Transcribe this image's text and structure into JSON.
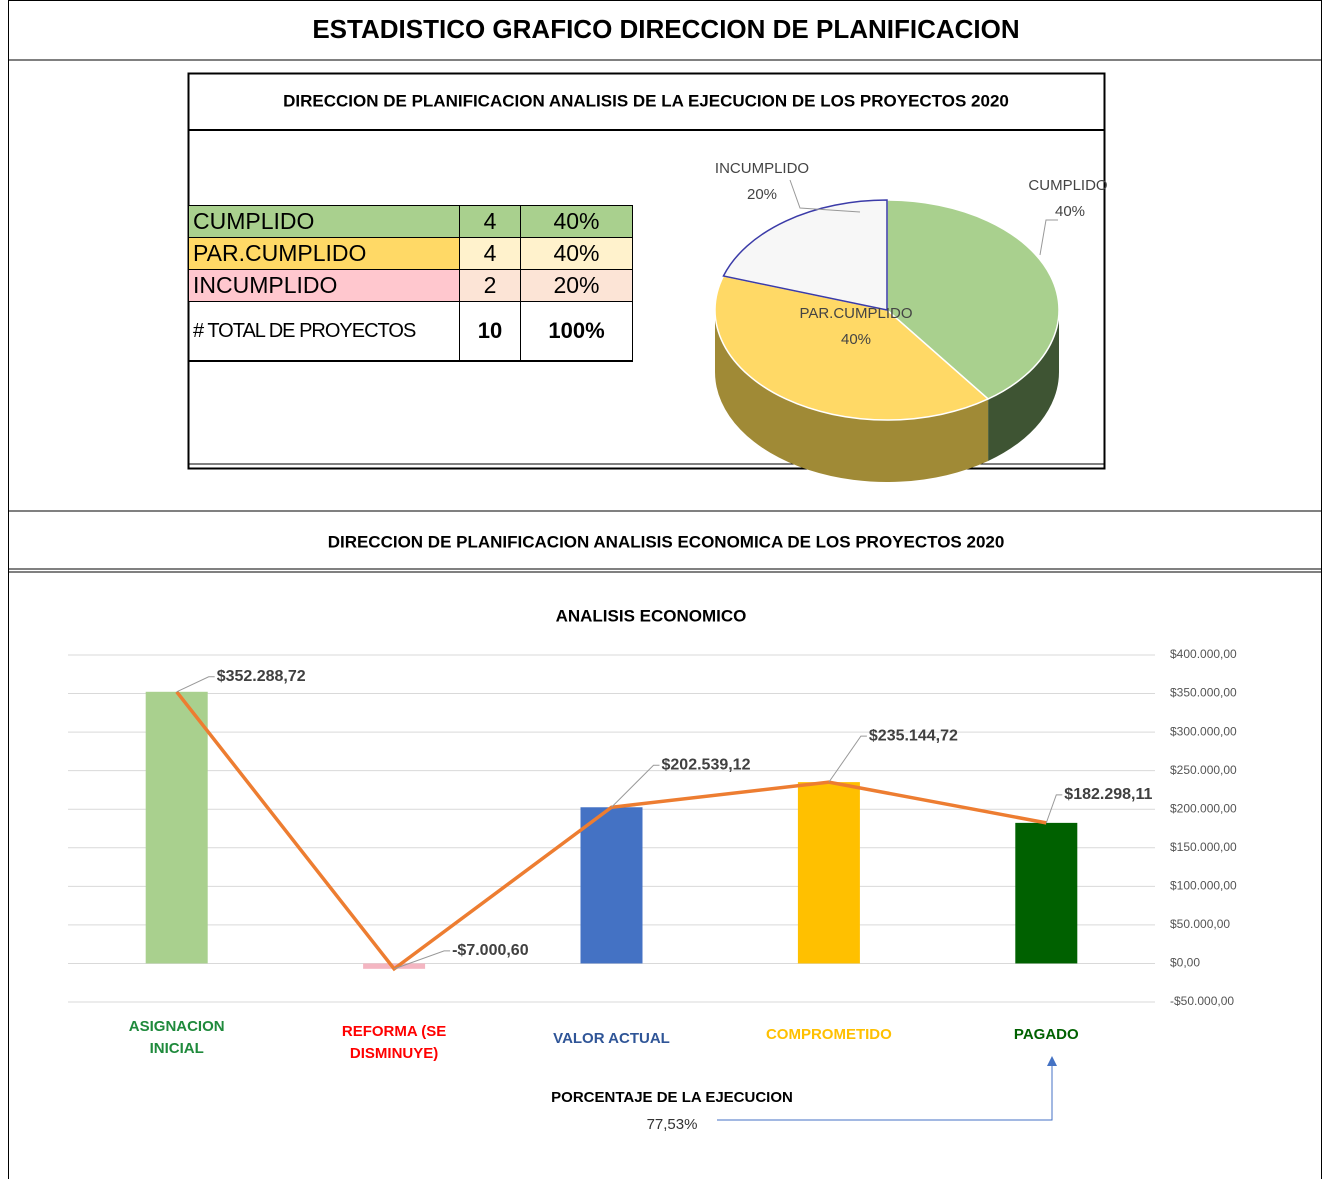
{
  "title": "ESTADISTICO GRAFICO DIRECCION DE PLANIFICACION",
  "section_titles": [
    "DIRECCION DE PLANIFICACION  ANALISIS DE LA EJECUCION  DE LOS PROYECTOS 2020",
    "DIRECCION DE PLANIFICACION ANALISIS ECONOMICA  DE LOS PROYECTOS 2020"
  ],
  "table": {
    "rows": [
      [
        "CUMPLIDO",
        4,
        "40%"
      ],
      [
        "PAR.CUMPLIDO",
        4,
        "40%"
      ],
      [
        "INCUMPLIDO",
        2,
        "20%"
      ],
      [
        "# TOTAL DE PROYECTOS",
        10,
        "100%"
      ]
    ]
  },
  "chart_data": [
    {
      "type": "pie",
      "categories": [
        "CUMPLIDO",
        "PAR.CUMPLIDO",
        "INCUMPLIDO"
      ],
      "values": [
        40,
        40,
        20
      ],
      "value_labels": [
        "40%",
        "40%",
        "20%"
      ],
      "colors": [
        "#a9d08e",
        "#ffd966",
        "#f7f7f7"
      ],
      "side_colors": [
        "#3e5433",
        "#a08a36",
        "#999999"
      ]
    },
    {
      "type": "bar",
      "title": "ANALISIS  ECONOMICO",
      "categories": [
        "ASIGNACION INICIAL",
        "REFORMA (SE DISMINUYE)",
        "VALOR ACTUAL",
        "COMPROMETIDO",
        "PAGADO"
      ],
      "category_colors": [
        "#1f8a3c",
        "#ff0000",
        "#2f5597",
        "#ffc000",
        "#006100"
      ],
      "values": [
        352288.72,
        -7000.6,
        202539.12,
        235144.72,
        182298.11
      ],
      "value_labels": [
        "$352.288,72",
        "-$7.000,60",
        "$202.539,12",
        "$235.144,72",
        "$182.298,11"
      ],
      "colors": [
        "#a9d08e",
        "#f4b6c2",
        "#4472c4",
        "#ffc000",
        "#006100"
      ],
      "line_color": "#ed7d31",
      "ylim": [
        -50000,
        400000
      ],
      "yticks": [
        {
          "value": -50000,
          "label": "-$50.000,00"
        },
        {
          "value": 0,
          "label": "$0,00"
        },
        {
          "value": 50000,
          "label": "$50.000,00"
        },
        {
          "value": 100000,
          "label": "$100.000,00"
        },
        {
          "value": 150000,
          "label": "$150.000,00"
        },
        {
          "value": 200000,
          "label": "$200.000,00"
        },
        {
          "value": 250000,
          "label": "$250.000,00"
        },
        {
          "value": 300000,
          "label": "$300.000,00"
        },
        {
          "value": 350000,
          "label": "$350.000,00"
        },
        {
          "value": 400000,
          "label": "$400.000,00"
        }
      ],
      "grid": true
    }
  ],
  "annotation": {
    "label": "PORCENTAJE DE LA EJECUCION",
    "value": "77,53%"
  }
}
